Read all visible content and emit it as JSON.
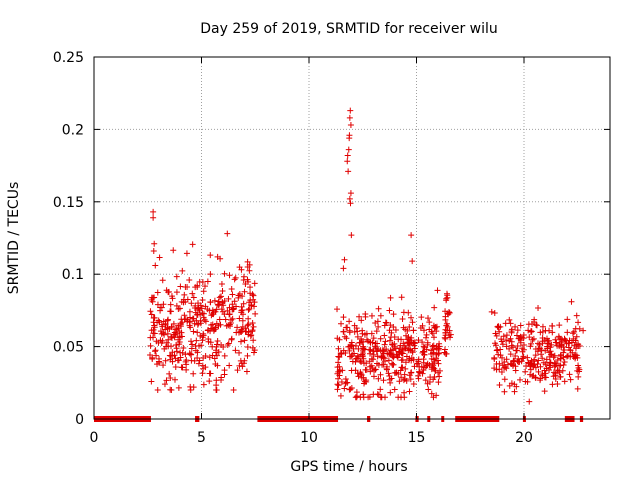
{
  "chart_data": {
    "type": "scatter",
    "title": "Day 259 of 2019, SRMTID for receiver wilu",
    "xlabel": "GPS time / hours",
    "ylabel": "SRMTID / TECUs",
    "xlim": [
      0,
      24
    ],
    "ylim": [
      0,
      0.25
    ],
    "xticks": [
      0,
      5,
      10,
      15,
      20
    ],
    "xtick_labels": [
      "0",
      "5",
      "10",
      "15",
      "20"
    ],
    "yticks": [
      0,
      0.05,
      0.1,
      0.15,
      0.2,
      0.25
    ],
    "ytick_labels": [
      "0",
      "0.05",
      "0.1",
      "0.15",
      "0.2",
      "0.25"
    ],
    "grid": true,
    "marker": "+",
    "color": "#e00000",
    "series": [
      {
        "name": "SRMTID",
        "clusters": [
          {
            "x_range": [
              2.6,
              7.5
            ],
            "y_center": 0.06,
            "y_spread": 0.02,
            "y_min": 0.02,
            "y_max": 0.128,
            "density": 430
          },
          {
            "x_range": [
              11.3,
              16.1
            ],
            "y_center": 0.045,
            "y_spread": 0.015,
            "y_min": 0.015,
            "y_max": 0.09,
            "density": 420
          },
          {
            "x_range": [
              16.3,
              16.6
            ],
            "y_center": 0.07,
            "y_spread": 0.015,
            "y_min": 0.045,
            "y_max": 0.097,
            "density": 30
          },
          {
            "x_range": [
              18.6,
              22.6
            ],
            "y_center": 0.045,
            "y_spread": 0.012,
            "y_min": 0.012,
            "y_max": 0.083,
            "density": 300
          }
        ],
        "notable_points": [
          {
            "x": 2.75,
            "y": 0.143
          },
          {
            "x": 2.75,
            "y": 0.139
          },
          {
            "x": 2.8,
            "y": 0.121
          },
          {
            "x": 2.78,
            "y": 0.116
          },
          {
            "x": 2.85,
            "y": 0.106
          },
          {
            "x": 11.65,
            "y": 0.11
          },
          {
            "x": 11.6,
            "y": 0.104
          },
          {
            "x": 11.78,
            "y": 0.178
          },
          {
            "x": 11.8,
            "y": 0.182
          },
          {
            "x": 11.82,
            "y": 0.171
          },
          {
            "x": 11.85,
            "y": 0.186
          },
          {
            "x": 11.87,
            "y": 0.194
          },
          {
            "x": 11.88,
            "y": 0.196
          },
          {
            "x": 11.9,
            "y": 0.208
          },
          {
            "x": 11.92,
            "y": 0.213
          },
          {
            "x": 11.95,
            "y": 0.203
          },
          {
            "x": 11.9,
            "y": 0.152
          },
          {
            "x": 11.93,
            "y": 0.149
          },
          {
            "x": 11.95,
            "y": 0.156
          },
          {
            "x": 11.97,
            "y": 0.127
          },
          {
            "x": 14.75,
            "y": 0.127
          },
          {
            "x": 14.8,
            "y": 0.109
          },
          {
            "x": 5.75,
            "y": 0.112
          },
          {
            "x": 6.2,
            "y": 0.128
          },
          {
            "x": 7.15,
            "y": 0.105
          },
          {
            "x": 3.6,
            "y": 0.02
          },
          {
            "x": 18.5,
            "y": 0.074
          },
          {
            "x": 22.75,
            "y": 0.061
          }
        ],
        "zero_segments": [
          [
            0.0,
            2.65
          ],
          [
            4.7,
            4.9
          ],
          [
            7.6,
            11.35
          ],
          [
            12.7,
            12.85
          ],
          [
            14.95,
            15.1
          ],
          [
            15.5,
            15.6
          ],
          [
            16.15,
            16.25
          ],
          [
            16.8,
            18.85
          ],
          [
            19.95,
            20.0
          ],
          [
            21.9,
            22.35
          ],
          [
            22.6,
            22.75
          ]
        ]
      }
    ]
  }
}
